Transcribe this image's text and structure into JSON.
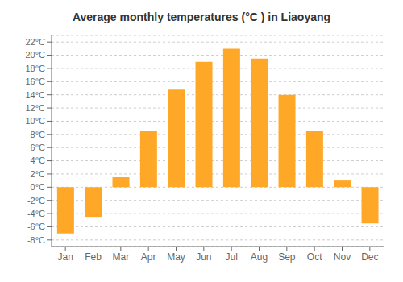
{
  "chart_data": {
    "type": "bar",
    "title": "Average monthly temperatures (°C ) in Liaoyang",
    "categories": [
      "Jan",
      "Feb",
      "Mar",
      "Apr",
      "May",
      "Jun",
      "Jul",
      "Aug",
      "Sep",
      "Oct",
      "Nov",
      "Dec"
    ],
    "values": [
      -7.0,
      -4.5,
      1.5,
      8.5,
      14.8,
      19.0,
      21.0,
      19.5,
      14.0,
      8.5,
      1.0,
      -5.5
    ],
    "color": "#FFA726",
    "ylim": [
      -9,
      23
    ],
    "yticks": [
      {
        "value": -8,
        "label": "-8°C"
      },
      {
        "value": -6,
        "label": "-6°C"
      },
      {
        "value": -4,
        "label": "-4°C"
      },
      {
        "value": -2,
        "label": "-2°C"
      },
      {
        "value": 0,
        "label": "0°C"
      },
      {
        "value": 2,
        "label": "2°C"
      },
      {
        "value": 4,
        "label": "4°C"
      },
      {
        "value": 6,
        "label": "6°C"
      },
      {
        "value": 8,
        "label": "8°C"
      },
      {
        "value": 10,
        "label": "10°C"
      },
      {
        "value": 12,
        "label": "12°C"
      },
      {
        "value": 14,
        "label": "14°C"
      },
      {
        "value": 16,
        "label": "16°C"
      },
      {
        "value": 18,
        "label": "18°C"
      },
      {
        "value": 20,
        "label": "20°C"
      },
      {
        "value": 22,
        "label": "22°C"
      }
    ],
    "grid": true
  }
}
